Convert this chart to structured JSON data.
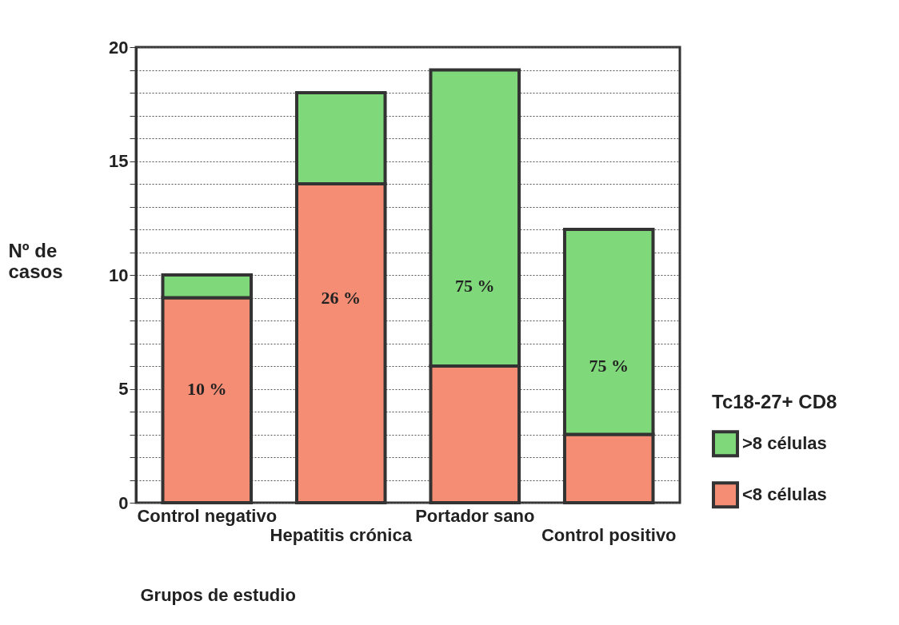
{
  "chart_data": {
    "type": "bar",
    "stacked": true,
    "xlabel": "Grupos de estudio",
    "ylabel": "Nº de casos",
    "legend_title": "Tc18-27+ CD8",
    "legend": "right",
    "grid": "y",
    "categories": [
      "Control negativo",
      "Hepatitis crónica",
      "Portador sano",
      "Control positivo"
    ],
    "series": [
      {
        "name": "<8 células",
        "color": "#f58c74",
        "values": [
          9,
          14,
          6,
          3
        ]
      },
      {
        "name": ">8 células",
        "color": "#7fd97a",
        "values": [
          1,
          4,
          13,
          9
        ]
      }
    ],
    "ylim": [
      0,
      20
    ],
    "yticks": [
      0,
      {
        "value": 1,
        "label": null
      },
      {
        "value": 2,
        "label": null
      },
      {
        "value": 3,
        "label": null
      },
      {
        "value": 4,
        "label": null
      },
      5,
      {
        "value": 6,
        "label": null
      },
      {
        "value": 7,
        "label": null
      },
      {
        "value": 8,
        "label": null
      },
      {
        "value": 9,
        "label": null
      },
      10,
      {
        "value": 11,
        "label": null
      },
      {
        "value": 12,
        "label": null
      },
      {
        "value": 13,
        "label": null
      },
      {
        "value": 14,
        "label": null
      },
      15,
      {
        "value": 16,
        "label": null
      },
      {
        "value": 17,
        "label": null
      },
      {
        "value": 18,
        "label": null
      },
      {
        "value": 19,
        "label": null
      },
      20
    ],
    "annotations": [
      "10 %",
      "26 %",
      "75 %",
      "75 %"
    ]
  }
}
